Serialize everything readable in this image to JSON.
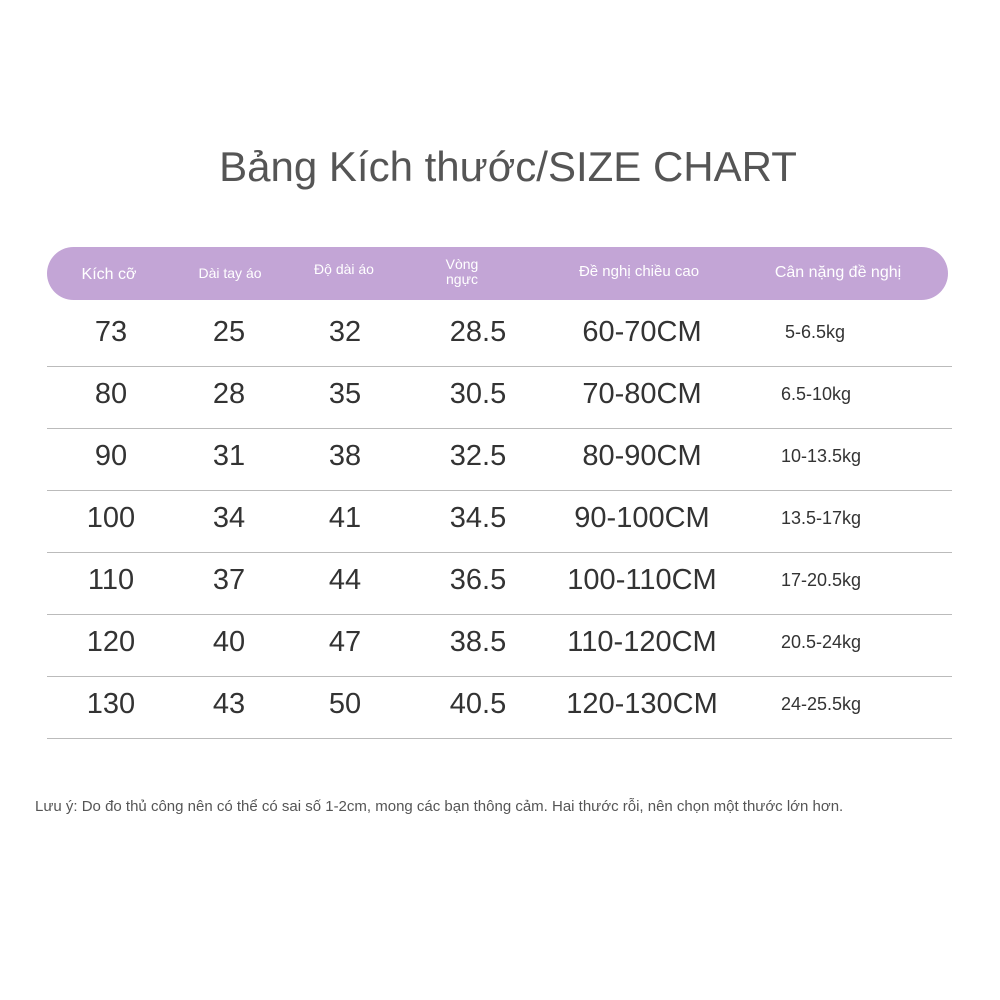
{
  "title": "Bảng Kích thước/SIZE CHART",
  "headers": [
    "Kích cỡ",
    "Dài tay áo",
    "Độ dài áo",
    "Vòng\nngực",
    "Đề nghị chiều cao",
    "Cân nặng đề nghị"
  ],
  "header_color": "#c3a5d6",
  "rows": [
    [
      "73",
      "25",
      "32",
      "28.5",
      "60-70CM",
      "5-6.5kg"
    ],
    [
      "80",
      "28",
      "35",
      "30.5",
      "70-80CM",
      "6.5-10kg"
    ],
    [
      "90",
      "31",
      "38",
      "32.5",
      "80-90CM",
      "10-13.5kg"
    ],
    [
      "100",
      "34",
      "41",
      "34.5",
      "90-100CM",
      "13.5-17kg"
    ],
    [
      "110",
      "37",
      "44",
      "36.5",
      "100-110CM",
      "17-20.5kg"
    ],
    [
      "120",
      "40",
      "47",
      "38.5",
      "110-120CM",
      "20.5-24kg"
    ],
    [
      "130",
      "43",
      "50",
      "40.5",
      "120-130CM",
      "24-25.5kg"
    ]
  ],
  "note": "Lưu ý: Do đo thủ công nên có thể có sai số 1-2cm, mong các bạn thông cảm. Hai thước rỗi, nên chọn một thước lớn hơn."
}
